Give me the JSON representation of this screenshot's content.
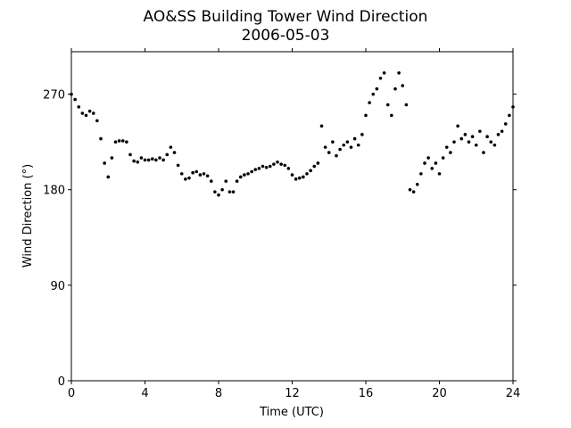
{
  "chart_data": {
    "type": "scatter",
    "title": "AO&SS Building Tower Wind Direction",
    "subtitle": "2006-05-03",
    "x_label": "Time (UTC)",
    "y_label": "Wind Direction (°)",
    "color": "#000000",
    "xlim": [
      0,
      24
    ],
    "xticks": [
      0,
      4,
      8,
      12,
      16,
      20,
      24
    ],
    "ylim": [
      0,
      310
    ],
    "yticks": [
      0,
      90,
      180,
      270
    ],
    "x": [
      0,
      0.2,
      0.4,
      0.6,
      0.8,
      1.0,
      1.2,
      1.4,
      1.6,
      1.8,
      2.0,
      2.2,
      2.4,
      2.6,
      2.8,
      3.0,
      3.2,
      3.4,
      3.6,
      3.8,
      4.0,
      4.2,
      4.4,
      4.6,
      4.8,
      5.0,
      5.2,
      5.4,
      5.6,
      5.8,
      6.0,
      6.2,
      6.4,
      6.6,
      6.8,
      7.0,
      7.2,
      7.4,
      7.6,
      7.8,
      8.0,
      8.2,
      8.4,
      8.6,
      8.8,
      9.0,
      9.2,
      9.4,
      9.6,
      9.8,
      10.0,
      10.2,
      10.4,
      10.6,
      10.8,
      11.0,
      11.2,
      11.4,
      11.6,
      11.8,
      12.0,
      12.2,
      12.4,
      12.6,
      12.8,
      13.0,
      13.2,
      13.4,
      13.6,
      13.8,
      14.0,
      14.2,
      14.4,
      14.6,
      14.8,
      15.0,
      15.2,
      15.4,
      15.6,
      15.8,
      16.0,
      16.2,
      16.4,
      16.6,
      16.8,
      17.0,
      17.2,
      17.4,
      17.6,
      17.8,
      18.0,
      18.2,
      18.4,
      18.6,
      18.8,
      19.0,
      19.2,
      19.4,
      19.6,
      19.8,
      20.0,
      20.2,
      20.4,
      20.6,
      20.8,
      21.0,
      21.2,
      21.4,
      21.6,
      21.8,
      22.0,
      22.2,
      22.4,
      22.6,
      22.8,
      23.0,
      23.2,
      23.4,
      23.6,
      23.8,
      24.0
    ],
    "values": [
      270,
      265,
      258,
      252,
      250,
      254,
      252,
      245,
      228,
      205,
      192,
      210,
      225,
      226,
      226,
      225,
      213,
      207,
      206,
      210,
      208,
      208,
      209,
      208,
      210,
      208,
      213,
      220,
      215,
      203,
      195,
      190,
      191,
      196,
      197,
      194,
      195,
      193,
      188,
      178,
      175,
      180,
      188,
      178,
      178,
      188,
      192,
      194,
      195,
      197,
      199,
      200,
      202,
      201,
      202,
      204,
      206,
      204,
      203,
      200,
      194,
      190,
      191,
      192,
      195,
      198,
      202,
      205,
      240,
      220,
      215,
      225,
      212,
      218,
      222,
      225,
      220,
      228,
      222,
      232,
      250,
      262,
      270,
      275,
      285,
      290,
      260,
      250,
      275,
      290,
      278,
      260,
      180,
      178,
      185,
      195,
      205,
      210,
      200,
      205,
      195,
      210,
      220,
      215,
      225,
      240,
      228,
      232,
      225,
      230,
      222,
      235,
      215,
      230,
      225,
      222,
      232,
      235,
      242,
      250,
      258
    ]
  }
}
